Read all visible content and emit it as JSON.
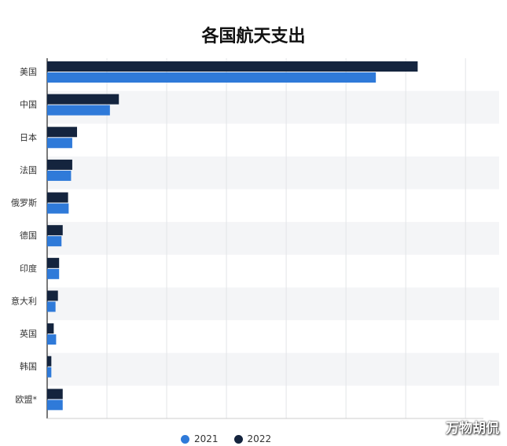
{
  "chart_data": {
    "type": "bar",
    "orientation": "horizontal",
    "title": "各国航天支出",
    "xlabel": "",
    "ylabel": "",
    "categories": [
      "美国",
      "中国",
      "日本",
      "法国",
      "俄罗斯",
      "德国",
      "印度",
      "意大利",
      "英国",
      "韩国",
      "欧盟*"
    ],
    "series": [
      {
        "name": "2022",
        "color": "#14243e",
        "values": [
          62,
          12,
          5,
          4.2,
          3.5,
          2.6,
          2,
          1.8,
          1.1,
          0.7,
          2.6
        ]
      },
      {
        "name": "2021",
        "color": "#2f7ad9",
        "values": [
          55,
          10.5,
          4.2,
          4,
          3.6,
          2.4,
          2,
          1.4,
          1.5,
          0.7,
          2.6
        ]
      }
    ],
    "xlim": [
      0,
      73
    ],
    "grid": true,
    "legend_position": "bottom",
    "legend": [
      {
        "label": "2021",
        "color": "#2f7ad9"
      },
      {
        "label": "2022",
        "color": "#14243e"
      }
    ]
  },
  "watermark": "万物胡侃"
}
